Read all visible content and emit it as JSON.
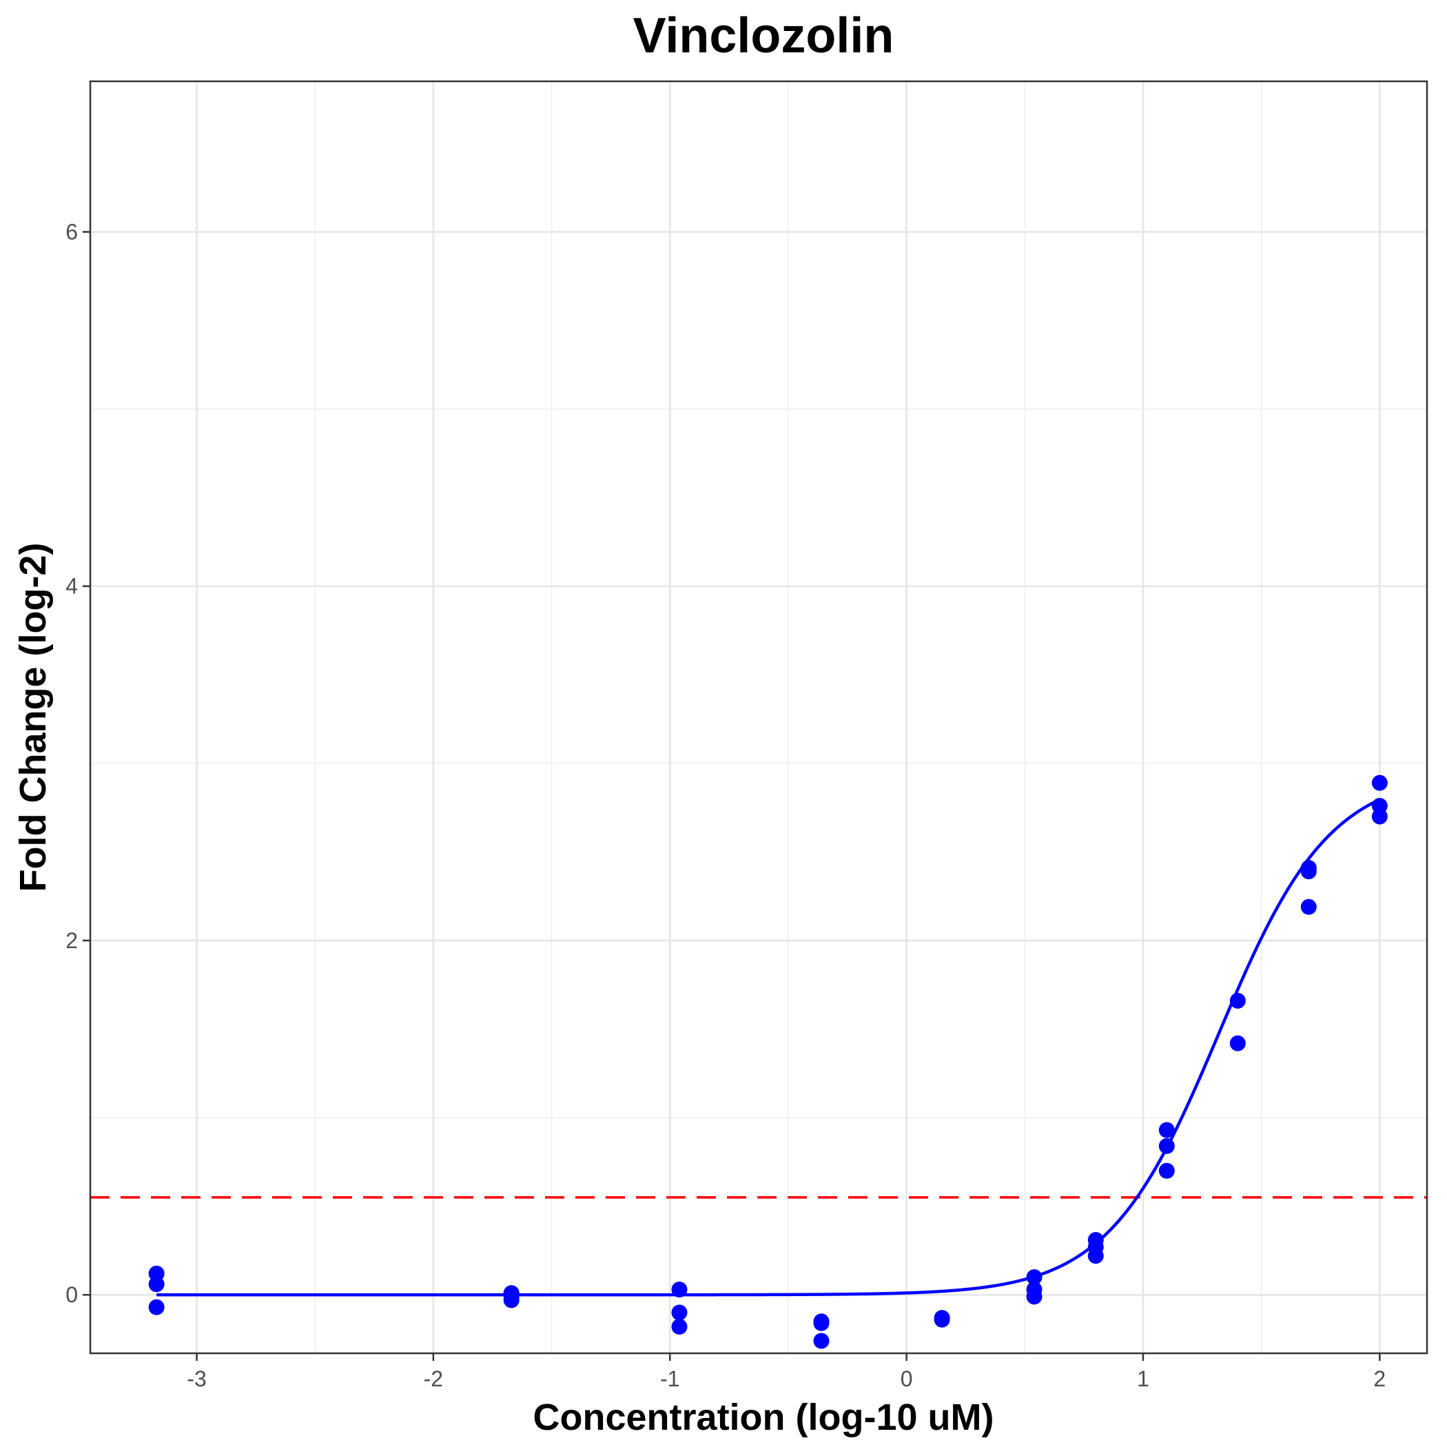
{
  "chart_data": {
    "type": "scatter",
    "title": "Vinclozolin",
    "xlabel": "Concentration (log-10 uM)",
    "ylabel": "Fold Change (log-2)",
    "xlim": [
      -3.45,
      2.2
    ],
    "ylim": [
      -0.33,
      6.85
    ],
    "x_ticks": [
      -3,
      -2,
      -1,
      0,
      1,
      2
    ],
    "x_tick_labels": [
      "-3",
      "-2",
      "-1",
      "0",
      "1",
      "2"
    ],
    "y_ticks": [
      0,
      2,
      4,
      6
    ],
    "y_tick_labels": [
      "0",
      "2",
      "4",
      "6"
    ],
    "grid": true,
    "point_color": "#0000ff",
    "curve_color": "#0000ff",
    "threshold_color": "#ff0000",
    "threshold": 0.55,
    "points": [
      {
        "x": -3.17,
        "y": 0.12
      },
      {
        "x": -3.17,
        "y": 0.06
      },
      {
        "x": -3.17,
        "y": -0.07
      },
      {
        "x": -1.67,
        "y": 0.01
      },
      {
        "x": -1.67,
        "y": -0.01
      },
      {
        "x": -1.67,
        "y": -0.03
      },
      {
        "x": -0.96,
        "y": 0.03
      },
      {
        "x": -0.96,
        "y": -0.1
      },
      {
        "x": -0.96,
        "y": -0.18
      },
      {
        "x": -0.36,
        "y": -0.15
      },
      {
        "x": -0.36,
        "y": -0.16
      },
      {
        "x": -0.36,
        "y": -0.26
      },
      {
        "x": 0.15,
        "y": -0.13
      },
      {
        "x": 0.15,
        "y": -0.14
      },
      {
        "x": 0.54,
        "y": 0.1
      },
      {
        "x": 0.54,
        "y": 0.03
      },
      {
        "x": 0.54,
        "y": -0.01
      },
      {
        "x": 0.8,
        "y": 0.31
      },
      {
        "x": 0.8,
        "y": 0.27
      },
      {
        "x": 0.8,
        "y": 0.22
      },
      {
        "x": 1.1,
        "y": 0.93
      },
      {
        "x": 1.1,
        "y": 0.84
      },
      {
        "x": 1.1,
        "y": 0.7
      },
      {
        "x": 1.4,
        "y": 1.66
      },
      {
        "x": 1.4,
        "y": 1.42
      },
      {
        "x": 1.7,
        "y": 2.41
      },
      {
        "x": 1.7,
        "y": 2.39
      },
      {
        "x": 1.7,
        "y": 2.19
      },
      {
        "x": 2.0,
        "y": 2.89
      },
      {
        "x": 2.0,
        "y": 2.76
      },
      {
        "x": 2.0,
        "y": 2.7
      }
    ],
    "fit_curve": {
      "model": "hill",
      "bottom": 0,
      "top": 2.95,
      "log_ec50": 1.32,
      "hill_slope": 1.85,
      "x_range": [
        -3.17,
        2.0
      ]
    }
  }
}
